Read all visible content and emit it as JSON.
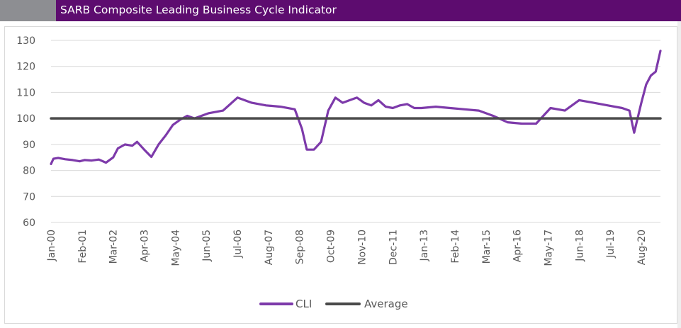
{
  "title": "SARB Composite Leading Business Cycle Indicator",
  "colors": {
    "title_bg": "#5d0c6f",
    "cli": "#7d3aaa",
    "average": "#4a4a4a",
    "grid": "#d9d9d9"
  },
  "chart_data": {
    "type": "line",
    "title": "SARB Composite Leading Business Cycle Indicator",
    "xlabel": "",
    "ylabel": "",
    "ylim": [
      60,
      130
    ],
    "yticks": [
      60,
      70,
      80,
      90,
      100,
      110,
      120,
      130
    ],
    "xlim": [
      "Jan-00",
      "Apr-21"
    ],
    "xticks": [
      "Jan-00",
      "Feb-01",
      "Mar-02",
      "Apr-03",
      "May-04",
      "Jun-05",
      "Jul-06",
      "Aug-07",
      "Sep-08",
      "Oct-09",
      "Nov-10",
      "Dec-11",
      "Jan-13",
      "Feb-14",
      "Mar-15",
      "Apr-16",
      "May-17",
      "Jun-18",
      "Jul-19",
      "Aug-20"
    ],
    "grid": true,
    "legend": {
      "position": "bottom"
    },
    "series": [
      {
        "name": "CLI",
        "x": [
          "Jan-00",
          "Feb-00",
          "Apr-00",
          "Jul-00",
          "Oct-00",
          "Jan-01",
          "Mar-01",
          "Jun-01",
          "Sep-01",
          "Dec-01",
          "Mar-02",
          "May-02",
          "Aug-02",
          "Nov-02",
          "Jan-03",
          "Apr-03",
          "Jul-03",
          "Oct-03",
          "Jan-04",
          "Apr-04",
          "Jul-04",
          "Oct-04",
          "Jan-05",
          "Jul-05",
          "Jan-06",
          "Jul-06",
          "Jan-07",
          "Jul-07",
          "Jan-08",
          "Jul-08",
          "Oct-08",
          "Dec-08",
          "Mar-09",
          "Jun-09",
          "Sep-09",
          "Dec-09",
          "Mar-10",
          "Jun-10",
          "Sep-10",
          "Dec-10",
          "Mar-11",
          "Jun-11",
          "Sep-11",
          "Dec-11",
          "Mar-12",
          "Jun-12",
          "Sep-12",
          "Dec-12",
          "Jun-13",
          "Dec-13",
          "Jun-14",
          "Dec-14",
          "Jun-15",
          "Dec-15",
          "Jun-16",
          "Dec-16",
          "Jun-17",
          "Dec-17",
          "Jun-18",
          "Dec-18",
          "Jun-19",
          "Dec-19",
          "Mar-20",
          "May-20",
          "Aug-20",
          "Oct-20",
          "Dec-20",
          "Feb-21",
          "Apr-21"
        ],
        "values": [
          82.5,
          84.5,
          84.8,
          84.3,
          84.0,
          83.5,
          84.0,
          83.8,
          84.2,
          83.0,
          85.0,
          88.5,
          90.0,
          89.5,
          91.0,
          88.0,
          85.2,
          90.0,
          93.5,
          97.5,
          99.5,
          101.0,
          100.0,
          102.0,
          103.0,
          108.0,
          106.0,
          105.0,
          104.5,
          103.5,
          96.0,
          88.0,
          88.0,
          91.0,
          103.0,
          108.0,
          106.0,
          107.0,
          108.0,
          106.0,
          105.0,
          107.0,
          104.5,
          104.0,
          105.0,
          105.5,
          104.0,
          104.0,
          104.5,
          104.0,
          103.5,
          103.0,
          101.0,
          98.5,
          98.0,
          98.0,
          104.0,
          103.0,
          107.0,
          106.0,
          105.0,
          104.0,
          103.0,
          94.5,
          106.0,
          113.0,
          116.5,
          118.0,
          126.0
        ]
      },
      {
        "name": "Average",
        "x": [
          "Jan-00",
          "Apr-21"
        ],
        "values": [
          100,
          100
        ]
      }
    ]
  },
  "legend": {
    "cli_label": "CLI",
    "average_label": "Average"
  }
}
